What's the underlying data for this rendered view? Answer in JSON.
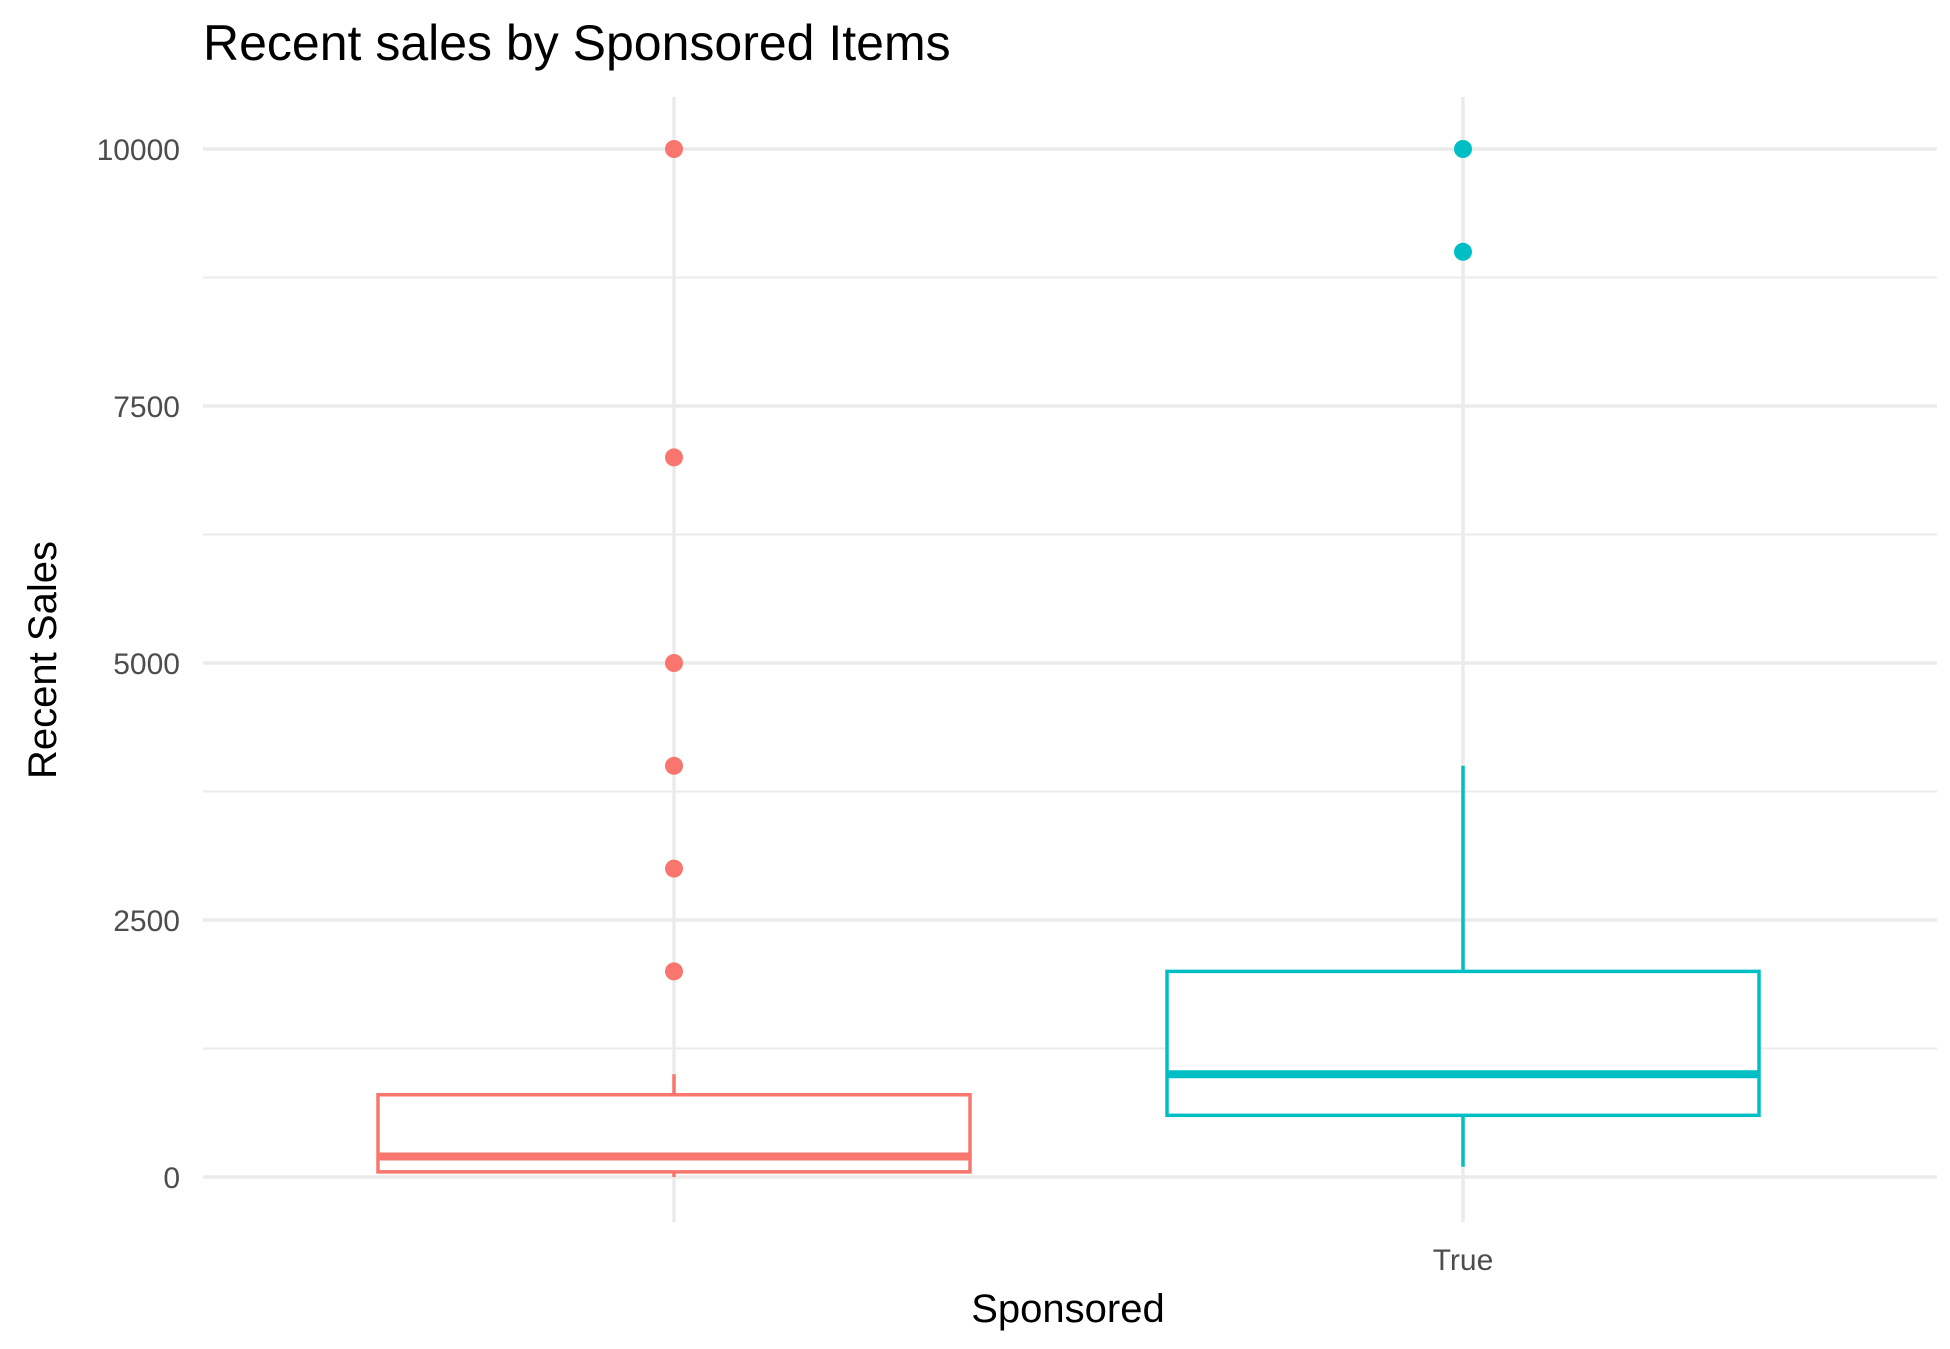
{
  "chart_data": {
    "type": "box",
    "title": "Recent sales by Sponsored Items",
    "xlabel": "Sponsored",
    "ylabel": "Recent Sales",
    "categories": [
      "",
      "True"
    ],
    "ylim": [
      -400,
      10500
    ],
    "y_ticks": [
      0,
      2500,
      5000,
      7500,
      10000
    ],
    "y_minor_ticks": [
      1250,
      3750,
      6250,
      8750
    ],
    "grid": true,
    "legend": "none",
    "colors": [
      "#f8766d",
      "#00bfc4"
    ],
    "boxes": [
      {
        "category": "",
        "whisker_low": 0,
        "q1": 50,
        "median": 200,
        "q3": 800,
        "whisker_high": 1000,
        "outliers": [
          2000,
          3000,
          4000,
          5000,
          7000,
          10000
        ]
      },
      {
        "category": "True",
        "whisker_low": 100,
        "q1": 600,
        "median": 1000,
        "q3": 2000,
        "whisker_high": 4000,
        "outliers": [
          9000,
          10000
        ]
      }
    ]
  }
}
